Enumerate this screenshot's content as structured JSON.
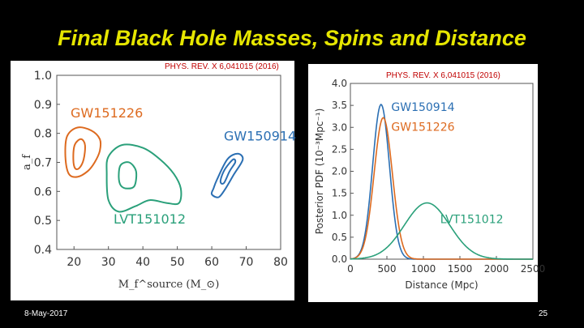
{
  "slide": {
    "title": "Final Black Hole Masses, Spins and Distance",
    "date": "8-May-2017",
    "page_number": "25"
  },
  "citations": {
    "left": "PHYS. REV. X 6,041015 (2016)",
    "right": "PHYS. REV. X 6,041015 (2016)"
  },
  "colors": {
    "GW150914": "#2b6fb3",
    "GW151226": "#dd6a1f",
    "LVT151012": "#2aa07a"
  },
  "chart_data": [
    {
      "type": "contour",
      "title": "",
      "xlabel": "M_f^source (M_⊙)",
      "ylabel": "a_f",
      "xlim": [
        15,
        80
      ],
      "ylim": [
        0.4,
        1.0
      ],
      "xticks": [
        "20",
        "30",
        "40",
        "50",
        "60",
        "70",
        "80"
      ],
      "yticks": [
        "0.4",
        "0.5",
        "0.6",
        "0.7",
        "0.8",
        "0.9",
        "1.0"
      ],
      "series": [
        {
          "name": "GW151226",
          "outer": [
            [
              17.5,
              0.72
            ],
            [
              18.0,
              0.79
            ],
            [
              21,
              0.82
            ],
            [
              25,
              0.81
            ],
            [
              27.5,
              0.78
            ],
            [
              27.5,
              0.74
            ],
            [
              26,
              0.7
            ],
            [
              24,
              0.67
            ],
            [
              21,
              0.65
            ],
            [
              18.5,
              0.66
            ]
          ],
          "inner": [
            [
              19.8,
              0.71
            ],
            [
              20.2,
              0.76
            ],
            [
              22,
              0.78
            ],
            [
              23.2,
              0.76
            ],
            [
              22.8,
              0.71
            ],
            [
              21.5,
              0.68
            ],
            [
              20.3,
              0.68
            ]
          ]
        },
        {
          "name": "LVT151012",
          "outer": [
            [
              29.5,
              0.66
            ],
            [
              30,
              0.72
            ],
            [
              34,
              0.76
            ],
            [
              40,
              0.75
            ],
            [
              45,
              0.71
            ],
            [
              49,
              0.66
            ],
            [
              51,
              0.61
            ],
            [
              50.5,
              0.56
            ],
            [
              47,
              0.56
            ],
            [
              42,
              0.57
            ],
            [
              38,
              0.55
            ],
            [
              33,
              0.53
            ],
            [
              30,
              0.57
            ]
          ],
          "inner": [
            [
              33,
              0.65
            ],
            [
              33.5,
              0.69
            ],
            [
              36,
              0.7
            ],
            [
              38,
              0.67
            ],
            [
              37.6,
              0.62
            ],
            [
              35.5,
              0.61
            ],
            [
              33.6,
              0.62
            ]
          ]
        },
        {
          "name": "GW150914",
          "outer": [
            [
              60.5,
              0.61
            ],
            [
              61.5,
              0.64
            ],
            [
              64.5,
              0.71
            ],
            [
              67.5,
              0.73
            ],
            [
              69,
              0.71
            ],
            [
              66.5,
              0.66
            ],
            [
              64,
              0.61
            ],
            [
              62,
              0.58
            ],
            [
              60,
              0.59
            ]
          ],
          "inner": [
            [
              62.8,
              0.65
            ],
            [
              64,
              0.68
            ],
            [
              66.2,
              0.71
            ],
            [
              66.8,
              0.7
            ],
            [
              65.2,
              0.67
            ],
            [
              63.6,
              0.63
            ],
            [
              62.6,
              0.63
            ]
          ]
        }
      ],
      "labels": [
        "GW151226",
        "GW150914",
        "LVT151012"
      ]
    },
    {
      "type": "line",
      "title": "",
      "xlabel": "Distance (Mpc)",
      "ylabel": "Posterior PDF (10⁻³Mpc⁻¹)",
      "xlim": [
        0,
        2500
      ],
      "ylim": [
        0,
        4.0
      ],
      "xticks": [
        "0",
        "500",
        "1000",
        "1500",
        "2000",
        "2500"
      ],
      "yticks": [
        "0.0",
        "0.5",
        "1.0",
        "1.5",
        "2.0",
        "2.5",
        "3.0",
        "3.5",
        "4.0"
      ],
      "series": [
        {
          "name": "GW150914",
          "mu": 420,
          "sigma": 115,
          "peak": 3.52
        },
        {
          "name": "GW151226",
          "mu": 450,
          "sigma": 125,
          "peak": 3.22
        },
        {
          "name": "LVT151012",
          "mu": 1050,
          "sigma": 310,
          "peak": 1.28
        }
      ],
      "labels": [
        "GW150914",
        "GW151226",
        "LVT151012"
      ]
    }
  ]
}
